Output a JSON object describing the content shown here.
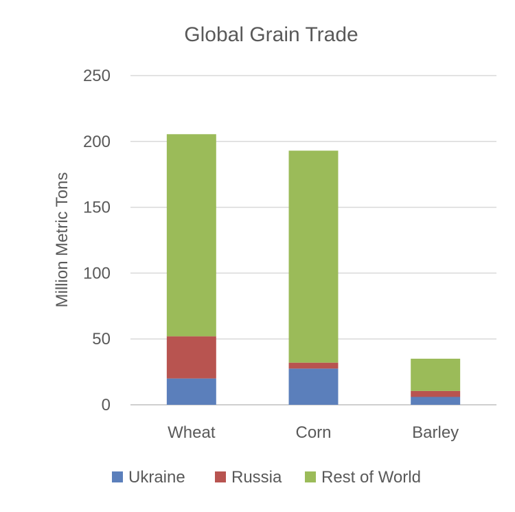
{
  "chart_data": {
    "type": "bar",
    "stacked": true,
    "title": "Global Grain Trade",
    "xlabel": "",
    "ylabel": "Million Metric Tons",
    "categories": [
      "Wheat",
      "Corn",
      "Barley"
    ],
    "series": [
      {
        "name": "Ukraine",
        "color": "#5B7FBB",
        "values": [
          20,
          27.5,
          6
        ]
      },
      {
        "name": "Russia",
        "color": "#B85450",
        "values": [
          32,
          4.5,
          4.5
        ]
      },
      {
        "name": "Rest of World",
        "color": "#9BBB59",
        "values": [
          153.5,
          161,
          24.5
        ]
      }
    ],
    "ylim": [
      0,
      250
    ],
    "yticks": [
      0,
      50,
      100,
      150,
      200,
      250
    ],
    "grid": true,
    "legend": "bottom"
  }
}
